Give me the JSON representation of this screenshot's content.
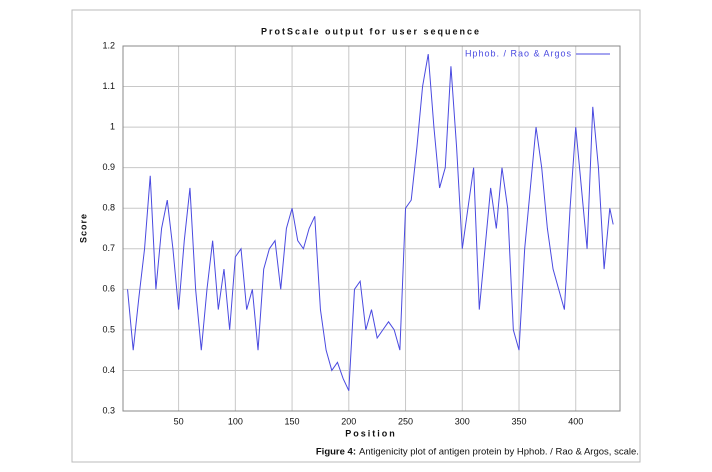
{
  "chart_data": {
    "type": "line",
    "title": "ProtScale output for user sequence",
    "x_label": "Position",
    "y_label": "Score",
    "x": [
      5,
      10,
      15,
      20,
      25,
      30,
      35,
      40,
      45,
      50,
      55,
      60,
      65,
      70,
      75,
      80,
      85,
      90,
      95,
      100,
      105,
      110,
      115,
      120,
      125,
      130,
      135,
      140,
      145,
      150,
      155,
      160,
      165,
      170,
      175,
      180,
      185,
      190,
      195,
      200,
      205,
      210,
      215,
      220,
      225,
      230,
      235,
      240,
      245,
      250,
      255,
      260,
      265,
      270,
      275,
      280,
      285,
      290,
      295,
      300,
      305,
      310,
      315,
      320,
      325,
      330,
      335,
      340,
      345,
      350,
      355,
      360,
      365,
      370,
      375,
      380,
      385,
      390,
      395,
      400,
      405,
      410,
      415,
      420,
      425,
      430,
      433
    ],
    "series": [
      {
        "name": "Hphob. / Rao & Argos",
        "color": "#4a4ae0",
        "values": [
          0.6,
          0.45,
          0.58,
          0.7,
          0.88,
          0.6,
          0.75,
          0.82,
          0.7,
          0.55,
          0.72,
          0.85,
          0.6,
          0.45,
          0.6,
          0.72,
          0.55,
          0.65,
          0.5,
          0.68,
          0.7,
          0.55,
          0.6,
          0.45,
          0.65,
          0.7,
          0.72,
          0.6,
          0.75,
          0.8,
          0.72,
          0.7,
          0.75,
          0.78,
          0.55,
          0.45,
          0.4,
          0.42,
          0.38,
          0.35,
          0.6,
          0.62,
          0.5,
          0.55,
          0.48,
          0.5,
          0.52,
          0.5,
          0.45,
          0.8,
          0.82,
          0.95,
          1.1,
          1.18,
          1.0,
          0.85,
          0.9,
          1.15,
          0.95,
          0.7,
          0.8,
          0.9,
          0.55,
          0.7,
          0.85,
          0.75,
          0.9,
          0.8,
          0.5,
          0.45,
          0.7,
          0.85,
          1.0,
          0.9,
          0.75,
          0.65,
          0.6,
          0.55,
          0.8,
          1.0,
          0.85,
          0.7,
          1.05,
          0.9,
          0.65,
          0.8,
          0.76
        ]
      }
    ],
    "xlim": [
      1,
      439
    ],
    "ylim": [
      0.3,
      1.2
    ],
    "xticks": [
      50,
      100,
      150,
      200,
      250,
      300,
      350,
      400
    ],
    "yticks": [
      0.3,
      0.4,
      0.5,
      0.6,
      0.7,
      0.8,
      0.9,
      1,
      1.1,
      1.2
    ],
    "grid": true,
    "legend": "top-right"
  },
  "caption": {
    "label": "Figure 4:",
    "text": "Antigenicity plot of antigen protein by Hphob. / Rao & Argos, scale."
  }
}
